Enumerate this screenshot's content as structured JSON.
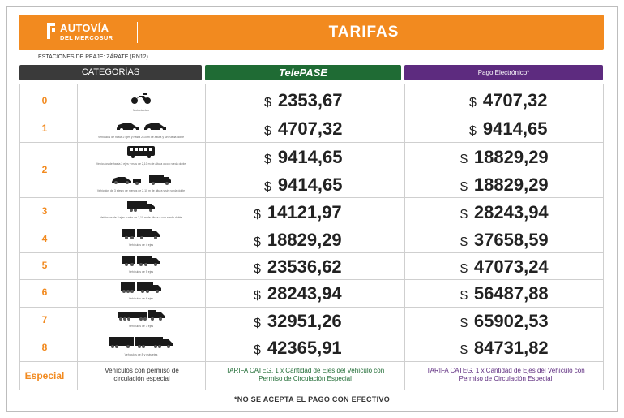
{
  "banner": {
    "logo_line1": "AUTOVÍA",
    "logo_line2": "DEL MERCOSUR",
    "title": "TARIFAS"
  },
  "station": "ESTACIONES DE PEAJE: ZÁRATE (RN12)",
  "headers": {
    "categories": "CATEGORÍAS",
    "telepase_prefix": "Tele",
    "telepase_suffix": "PASE",
    "electronic": "Pago Electrónico*"
  },
  "currency": "$",
  "rows": [
    {
      "cat": "0",
      "caption": "Motocicletas",
      "telepase": "2353,67",
      "electronic": "4707,32",
      "icon": "motorcycle-icon"
    },
    {
      "cat": "1",
      "caption": "Vehículos de hasta 2 ejes y hasta 2,10 m de altura y sin rueda doble",
      "telepase": "4707,32",
      "electronic": "9414,65",
      "icon": "cars-icon"
    },
    {
      "cat": "2",
      "caption": "Vehículos de hasta 2 ejes y más de 2,10 m de altura o con rueda doble",
      "telepase": "9414,65",
      "electronic": "18829,29",
      "icon": "bus-icon"
    },
    {
      "cat": "",
      "caption": "Vehículos de 3 ejes y de menos de 2,10 m de altura y sin rueda doble",
      "telepase": "9414,65",
      "electronic": "18829,29",
      "icon": "car-trailer-truck-icon"
    },
    {
      "cat": "3",
      "caption": "Vehículos de 3 ejes y más de 2,10 m de altura o con rueda doble",
      "telepase": "14121,97",
      "electronic": "28243,94",
      "icon": "truck-3-axle-icon"
    },
    {
      "cat": "4",
      "caption": "Vehículos de 4 ejes",
      "telepase": "18829,29",
      "electronic": "37658,59",
      "icon": "truck-4-axle-icon"
    },
    {
      "cat": "5",
      "caption": "Vehículos de 5 ejes",
      "telepase": "23536,62",
      "electronic": "47073,24",
      "icon": "truck-5-axle-icon"
    },
    {
      "cat": "6",
      "caption": "Vehículos de 6 ejes",
      "telepase": "28243,94",
      "electronic": "56487,88",
      "icon": "truck-6-axle-icon"
    },
    {
      "cat": "7",
      "caption": "Vehículos de 7 ejes",
      "telepase": "32951,26",
      "electronic": "65902,53",
      "icon": "truck-7-axle-icon"
    },
    {
      "cat": "8",
      "caption": "Vehículos de 8 y más ejes",
      "telepase": "42365,91",
      "electronic": "84731,82",
      "icon": "truck-8-axle-icon"
    }
  ],
  "special": {
    "cat": "Especial",
    "desc": "Vehículos con permiso de circulación especial",
    "telepase": "TARIFA CATEG. 1 x Cantidad de Ejes del Vehículo con Permiso de Circulación Especial",
    "electronic": "TARIFA CATEG. 1 x Cantidad de Ejes del Vehículo con Permiso de Circulación Especial"
  },
  "footnote": "*NO SE ACEPTA EL PAGO CON EFECTIVO",
  "colors": {
    "orange": "#f28a1f",
    "dark": "#3a3a3a",
    "green": "#1f6b34",
    "purple": "#5d2b7f"
  }
}
